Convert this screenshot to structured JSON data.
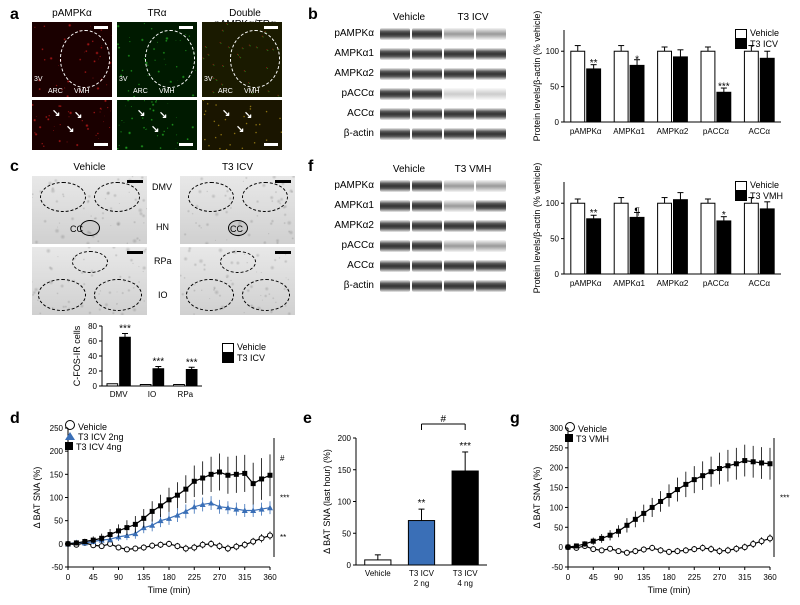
{
  "labels": {
    "a": "a",
    "b": "b",
    "c": "c",
    "d": "d",
    "e": "e",
    "f": "f",
    "g": "g"
  },
  "panelA": {
    "col_headers": [
      "pAMPKα",
      "TRα",
      "Double pAMPKα/TRα"
    ],
    "sublabels": [
      "3V",
      "ARC",
      "VMH"
    ],
    "colors": {
      "red": "#d01818",
      "green": "#1ea51e",
      "yellow": "#d8c820"
    }
  },
  "panelB": {
    "treatment_labels": [
      "Vehicle",
      "T3 ICV"
    ],
    "row_labels": [
      "pAMPKα",
      "AMPKα1",
      "AMPKα2",
      "pACCα",
      "ACCα",
      "β-actin"
    ],
    "chart": {
      "ylabel": "Protein levels/β-actin (% vehicle)",
      "categories": [
        "pAMPKα",
        "AMPKα1",
        "AMPKα2",
        "pACCα",
        "ACCα"
      ],
      "vehicle": [
        100,
        100,
        100,
        100,
        100
      ],
      "vehicle_err": [
        8,
        8,
        6,
        6,
        8
      ],
      "t3": [
        75,
        80,
        92,
        42,
        90
      ],
      "t3_err": [
        6,
        8,
        10,
        6,
        10
      ],
      "sig": [
        "**",
        "*",
        "",
        "***",
        ""
      ],
      "ylim": [
        0,
        130
      ],
      "ytick_step": 50,
      "bar_colors": {
        "vehicle": "#ffffff",
        "t3": "#000000"
      },
      "legend": [
        "Vehicle",
        "T3 ICV"
      ],
      "label_fontsize": 9
    }
  },
  "panelC": {
    "col_headers": [
      "Vehicle",
      "T3 ICV"
    ],
    "region_labels": [
      "DMV",
      "CC",
      "HN",
      "RPa",
      "IO"
    ],
    "chart": {
      "ylabel": "C-FOS-IR cells",
      "categories": [
        "DMV",
        "IO",
        "RPa"
      ],
      "vehicle": [
        3,
        2,
        2
      ],
      "t3": [
        65,
        23,
        22
      ],
      "t3_err": [
        5,
        3,
        3
      ],
      "sig": [
        "***",
        "***",
        "***"
      ],
      "ylim": [
        0,
        80
      ],
      "ytick_step": 20,
      "bar_colors": {
        "vehicle": "#ffffff",
        "t3": "#000000"
      },
      "legend": [
        "Vehicle",
        "T3 ICV"
      ]
    }
  },
  "panelD": {
    "type": "line",
    "xlabel": "Time (min)",
    "ylabel": "Δ BAT SNA (%)",
    "xlim": [
      0,
      360
    ],
    "xtick_step": 45,
    "ylim": [
      -50,
      250
    ],
    "ytick_step": 50,
    "legend": [
      "Vehicle",
      "T3 ICV 2ng",
      "T3 ICV 4ng"
    ],
    "colors": {
      "vehicle": "#000000",
      "t2": "#3a6fb7",
      "t4": "#000000"
    },
    "markers": {
      "vehicle": "open-circle",
      "t2": "triangle",
      "t4": "square"
    },
    "series": {
      "x": [
        0,
        15,
        30,
        45,
        60,
        75,
        90,
        105,
        120,
        135,
        150,
        165,
        180,
        195,
        210,
        225,
        240,
        255,
        270,
        285,
        300,
        315,
        330,
        345,
        360
      ],
      "vehicle": [
        0,
        -2,
        2,
        -3,
        -5,
        0,
        -8,
        -12,
        -10,
        -8,
        -4,
        -2,
        0,
        -5,
        -10,
        -8,
        -2,
        0,
        -5,
        -10,
        -6,
        -2,
        5,
        12,
        18
      ],
      "veh_err": [
        3,
        3,
        4,
        4,
        5,
        6,
        6,
        6,
        6,
        7,
        7,
        7,
        7,
        7,
        8,
        8,
        8,
        8,
        8,
        8,
        8,
        8,
        8,
        9,
        9
      ],
      "t2": [
        0,
        3,
        2,
        5,
        8,
        10,
        15,
        18,
        22,
        35,
        40,
        50,
        55,
        62,
        70,
        80,
        85,
        88,
        80,
        78,
        75,
        72,
        72,
        75,
        78
      ],
      "t2_err": [
        3,
        4,
        5,
        6,
        7,
        8,
        9,
        10,
        11,
        12,
        13,
        14,
        14,
        15,
        15,
        15,
        15,
        15,
        15,
        14,
        14,
        14,
        14,
        14,
        14
      ],
      "t4": [
        0,
        2,
        5,
        8,
        12,
        20,
        28,
        35,
        42,
        55,
        70,
        82,
        95,
        105,
        118,
        135,
        142,
        150,
        155,
        148,
        150,
        152,
        130,
        140,
        148
      ],
      "t4_err": [
        4,
        5,
        6,
        8,
        10,
        12,
        14,
        16,
        18,
        20,
        22,
        24,
        26,
        28,
        30,
        34,
        36,
        38,
        40,
        40,
        40,
        40,
        45,
        45,
        45
      ]
    },
    "right_sigs": [
      "#",
      "***",
      "**"
    ]
  },
  "panelE": {
    "type": "bar",
    "ylabel": "Δ BAT SNA (last hour) (%)",
    "categories": [
      "Vehicle",
      "T3 ICV\n2 ng",
      "T3 ICV\n4 ng"
    ],
    "values": [
      8,
      70,
      148
    ],
    "err": [
      8,
      18,
      30
    ],
    "colors": [
      "#ffffff",
      "#3a6fb7",
      "#000000"
    ],
    "sig_top": [
      "",
      "**",
      "***"
    ],
    "bracket_sig": "#",
    "ylim": [
      0,
      200
    ],
    "ytick_step": 50
  },
  "panelF": {
    "treatment_labels": [
      "Vehicle",
      "T3 VMH"
    ],
    "row_labels": [
      "pAMPKα",
      "AMPKα1",
      "AMPKα2",
      "pACCα",
      "ACCα",
      "β-actin"
    ],
    "chart": {
      "ylabel": "Protein levels/β-actin (% vehicle)",
      "categories": [
        "pAMPKα",
        "AMPKα1",
        "AMPKα2",
        "pACCα",
        "ACCα"
      ],
      "vehicle": [
        100,
        100,
        100,
        100,
        100
      ],
      "vehicle_err": [
        6,
        8,
        8,
        6,
        8
      ],
      "t3": [
        78,
        80,
        105,
        75,
        92
      ],
      "t3_err": [
        5,
        7,
        10,
        6,
        10
      ],
      "sig": [
        "**",
        "¶",
        "",
        "*",
        ""
      ],
      "ylim": [
        0,
        130
      ],
      "ytick_step": 50,
      "bar_colors": {
        "vehicle": "#ffffff",
        "t3": "#000000"
      },
      "legend": [
        "Vehicle",
        "T3 VMH"
      ]
    }
  },
  "panelG": {
    "type": "line",
    "xlabel": "Time (min)",
    "ylabel": "Δ BAT SNA (%)",
    "xlim": [
      0,
      360
    ],
    "xtick_step": 45,
    "ylim": [
      -50,
      300
    ],
    "ytick_step": 50,
    "legend": [
      "Vehicle",
      "T3 VMH"
    ],
    "colors": {
      "vehicle": "#000000",
      "t3": "#000000"
    },
    "markers": {
      "vehicle": "open-circle",
      "t3": "square"
    },
    "series": {
      "x": [
        0,
        15,
        30,
        45,
        60,
        75,
        90,
        105,
        120,
        135,
        150,
        165,
        180,
        195,
        210,
        225,
        240,
        255,
        270,
        285,
        300,
        315,
        330,
        345,
        360
      ],
      "vehicle": [
        0,
        -2,
        3,
        -5,
        -8,
        -4,
        -10,
        -14,
        -10,
        -6,
        -2,
        -8,
        -12,
        -10,
        -8,
        -5,
        -2,
        -5,
        -10,
        -8,
        -4,
        0,
        8,
        15,
        22
      ],
      "veh_err": [
        4,
        4,
        5,
        6,
        6,
        7,
        7,
        8,
        8,
        8,
        8,
        8,
        8,
        8,
        8,
        8,
        9,
        9,
        9,
        9,
        9,
        9,
        10,
        10,
        10
      ],
      "t3": [
        0,
        3,
        8,
        15,
        22,
        30,
        40,
        55,
        70,
        85,
        100,
        115,
        130,
        145,
        158,
        170,
        180,
        190,
        198,
        205,
        210,
        218,
        215,
        212,
        210
      ],
      "t3_err": [
        4,
        5,
        7,
        9,
        11,
        13,
        15,
        18,
        20,
        22,
        24,
        26,
        28,
        30,
        32,
        34,
        36,
        38,
        40,
        40,
        40,
        40,
        40,
        40,
        40
      ]
    },
    "right_sig": "***"
  }
}
